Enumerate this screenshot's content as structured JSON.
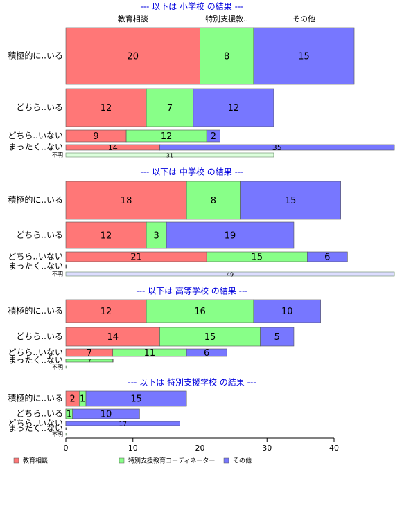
{
  "chart_data": {
    "type": "bar",
    "categories": [
      "積極的に..いる",
      "どちら..いる",
      "どちら..いない",
      "まったく..ない",
      "不明"
    ],
    "column_labels": [
      "教育相談",
      "特別支援教..",
      "その他"
    ],
    "series": [
      {
        "name": "教育相談",
        "color": "#ff7777"
      },
      {
        "name": "特別支援教育コーディネーター",
        "color": "#88ff88"
      },
      {
        "name": "その他",
        "color": "#7777ff"
      }
    ],
    "panels": [
      {
        "title": "--- 以下は 小学校 の結果 ---",
        "values": [
          [
            20,
            12,
            9,
            14
          ],
          [
            8,
            7,
            12,
            0
          ],
          [
            15,
            12,
            2,
            35
          ]
        ],
        "na_value": 31,
        "na_color": "#ddffdd"
      },
      {
        "title": "--- 以下は 中学校 の結果 ---",
        "values": [
          [
            18,
            12,
            21,
            0
          ],
          [
            8,
            3,
            15,
            0
          ],
          [
            15,
            19,
            6,
            0
          ]
        ],
        "na_value": 49,
        "na_color": "#ddddff"
      },
      {
        "title": "--- 以下は 高等学校 の結果 ---",
        "values": [
          [
            12,
            14,
            7,
            0
          ],
          [
            16,
            15,
            11,
            7
          ],
          [
            10,
            5,
            6,
            0
          ]
        ],
        "na_value": 0,
        "na_color": "#ddffdd"
      },
      {
        "title": "--- 以下は 特別支援学校 の結果 ---",
        "values": [
          [
            2,
            0,
            0,
            0
          ],
          [
            1,
            1,
            0,
            0
          ],
          [
            15,
            10,
            17,
            0
          ]
        ],
        "na_value": 0,
        "na_color": "#ddddff"
      }
    ],
    "xlim": [
      0,
      50
    ],
    "xticks": [
      0,
      10,
      20,
      30,
      40
    ]
  }
}
